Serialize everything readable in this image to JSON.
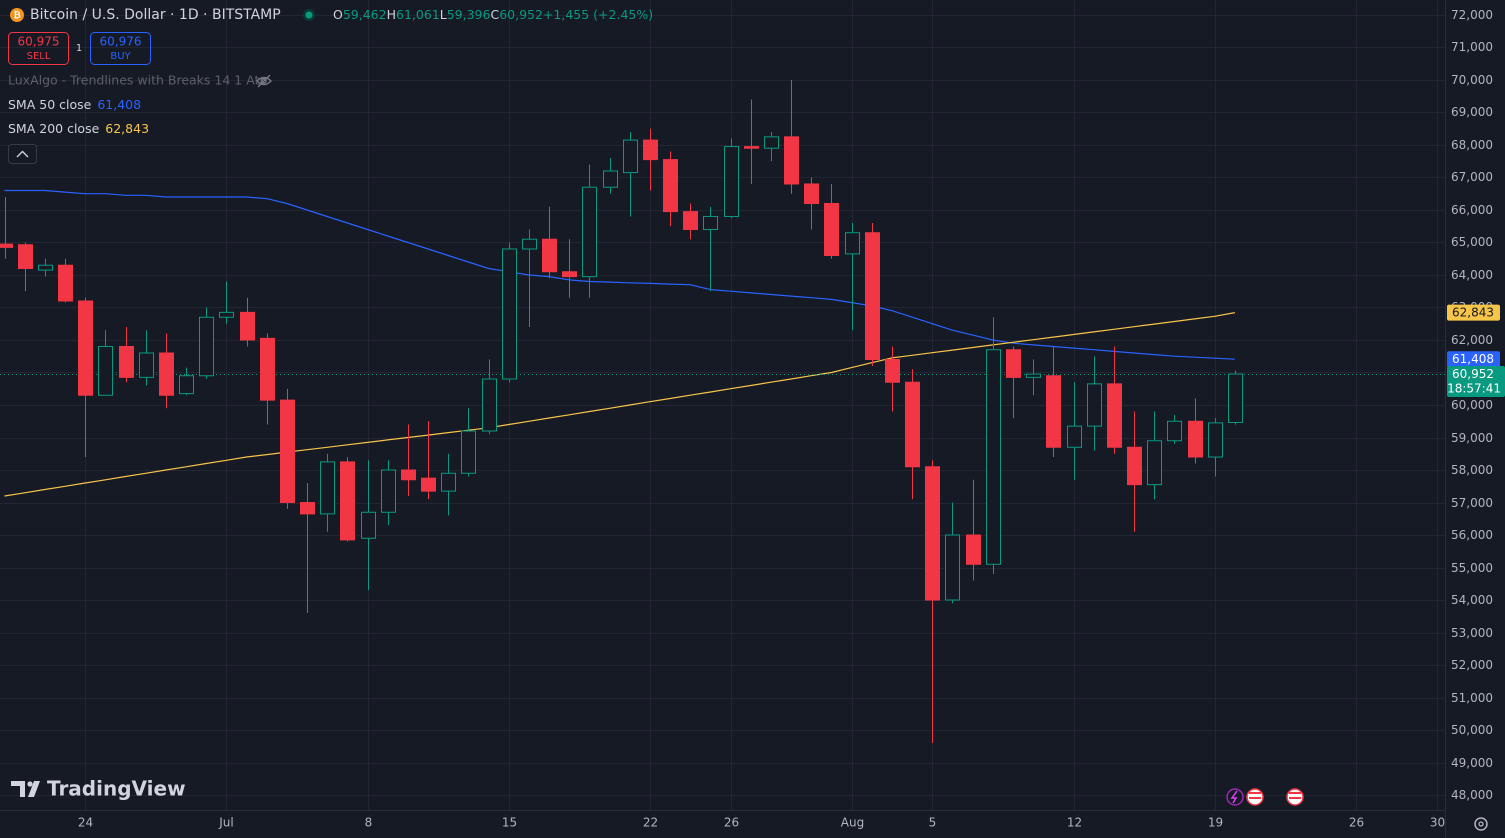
{
  "header": {
    "title": "Bitcoin / U.S. Dollar · 1D · BITSTAMP",
    "ohlc": [
      {
        "key": "O",
        "value": "59,462"
      },
      {
        "key": "H",
        "value": "61,061"
      },
      {
        "key": "L",
        "value": "59,396"
      },
      {
        "key": "C",
        "value": "60,952"
      }
    ],
    "change": "+1,455 (+2.45%)",
    "sell_price": "60,975",
    "sell_label": "SELL",
    "buy_price": "60,976",
    "buy_label": "BUY",
    "quantity": "1",
    "indicator": "LuxAlgo - Trendlines with Breaks 14 1 Atr",
    "watermark": "TradingView"
  },
  "chart_data": {
    "type": "candlestick",
    "x": [
      "Jun 20",
      "Jun 21",
      "Jun 22",
      "Jun 23",
      "Jun 24",
      "Jun 25",
      "Jun 26",
      "Jun 27",
      "Jun 28",
      "Jun 29",
      "Jun 30",
      "Jul 1",
      "Jul 2",
      "Jul 3",
      "Jul 4",
      "Jul 5",
      "Jul 6",
      "Jul 7",
      "Jul 8",
      "Jul 9",
      "Jul 10",
      "Jul 11",
      "Jul 12",
      "Jul 13",
      "Jul 14",
      "Jul 15",
      "Jul 16",
      "Jul 17",
      "Jul 18",
      "Jul 19",
      "Jul 20",
      "Jul 21",
      "Jul 22",
      "Jul 23",
      "Jul 24",
      "Jul 25",
      "Jul 26",
      "Jul 27",
      "Jul 28",
      "Jul 29",
      "Jul 30",
      "Jul 31",
      "Aug 1",
      "Aug 2",
      "Aug 3",
      "Aug 4",
      "Aug 5",
      "Aug 6",
      "Aug 7",
      "Aug 8",
      "Aug 9",
      "Aug 10",
      "Aug 11",
      "Aug 12",
      "Aug 13",
      "Aug 14",
      "Aug 15",
      "Aug 16",
      "Aug 17",
      "Aug 18",
      "Aug 19",
      "Aug 20"
    ],
    "open": [
      64950,
      64930,
      64150,
      64300,
      63200,
      60300,
      61800,
      60850,
      61600,
      60350,
      60900,
      62700,
      62850,
      62050,
      60150,
      57000,
      56650,
      58250,
      55900,
      56700,
      58000,
      57750,
      57350,
      57900,
      59200,
      60800,
      64800,
      65100,
      64100,
      63950,
      66700,
      67150,
      68150,
      67550,
      65950,
      65400,
      65800,
      67950,
      67900,
      68250,
      66800,
      66200,
      64650,
      65300,
      61400,
      60700,
      58100,
      54000,
      56000,
      55100,
      61700,
      60850,
      60900,
      58700,
      59350,
      60650,
      58700,
      57550,
      58900,
      59500,
      58400,
      59462
    ],
    "high": [
      66400,
      65000,
      64500,
      64500,
      63300,
      62300,
      62400,
      62300,
      62200,
      61150,
      63000,
      63800,
      63300,
      62200,
      60500,
      57600,
      58500,
      58400,
      58300,
      58300,
      59400,
      59500,
      58500,
      59900,
      61400,
      65000,
      65400,
      66100,
      65100,
      67400,
      67600,
      68400,
      68500,
      67800,
      66200,
      66100,
      68200,
      69400,
      68400,
      70000,
      67000,
      66800,
      65600,
      65600,
      61800,
      61100,
      58300,
      57000,
      57700,
      62700,
      61800,
      61400,
      61800,
      60700,
      61500,
      61800,
      59800,
      59800,
      59700,
      60200,
      59600,
      61061
    ],
    "low": [
      64500,
      63500,
      63950,
      63150,
      58400,
      60300,
      60700,
      60600,
      59900,
      60300,
      60800,
      62500,
      61800,
      59400,
      56800,
      53600,
      56100,
      55800,
      54300,
      56300,
      57200,
      57100,
      56600,
      57800,
      59100,
      60700,
      62400,
      63900,
      63300,
      63300,
      66500,
      65800,
      66600,
      65500,
      65100,
      63500,
      65750,
      66800,
      67500,
      66500,
      65400,
      64500,
      62300,
      61200,
      59800,
      57100,
      49600,
      53900,
      54600,
      54800,
      59600,
      60300,
      58400,
      57700,
      58600,
      58500,
      56100,
      57100,
      58800,
      58200,
      57800,
      59396
    ],
    "close": [
      64850,
      64200,
      64300,
      63200,
      60300,
      61800,
      60850,
      61600,
      60300,
      60900,
      62700,
      62850,
      62000,
      60150,
      57000,
      56650,
      58250,
      55850,
      56700,
      58000,
      57700,
      57350,
      57900,
      59200,
      60800,
      64800,
      65100,
      64100,
      63950,
      66700,
      67200,
      68150,
      67550,
      65950,
      65400,
      65800,
      67950,
      67900,
      68250,
      66800,
      66200,
      64600,
      65300,
      61400,
      60700,
      58100,
      54000,
      56000,
      55100,
      61700,
      60850,
      60950,
      58700,
      59350,
      60650,
      58700,
      57550,
      58900,
      59500,
      58400,
      59450,
      60952
    ],
    "close_label": "60,952",
    "countdown": "18:57:41",
    "up_color": "#089981",
    "down_color": "#f23645",
    "series": [
      {
        "name": "SMA 50 close",
        "color": "#2962ff",
        "last_label": "61,408",
        "values": [
          66600,
          66600,
          66600,
          66550,
          66500,
          66500,
          66450,
          66450,
          66400,
          66400,
          66400,
          66400,
          66400,
          66350,
          66200,
          66000,
          65800,
          65600,
          65400,
          65200,
          65000,
          64800,
          64600,
          64400,
          64200,
          64100,
          64000,
          63950,
          63850,
          63800,
          63780,
          63760,
          63740,
          63720,
          63700,
          63550,
          63500,
          63450,
          63400,
          63350,
          63300,
          63250,
          63150,
          63050,
          62900,
          62700,
          62500,
          62300,
          62150,
          62000,
          61900,
          61850,
          61800,
          61750,
          61700,
          61650,
          61600,
          61550,
          61500,
          61470,
          61440,
          61408
        ]
      },
      {
        "name": "SMA 200 close",
        "color": "#f7c548",
        "last_label": "62,843",
        "values": [
          57200,
          57300,
          57400,
          57500,
          57600,
          57700,
          57800,
          57900,
          58000,
          58100,
          58200,
          58300,
          58400,
          58475,
          58550,
          58625,
          58700,
          58775,
          58850,
          58925,
          59000,
          59075,
          59150,
          59225,
          59300,
          59400,
          59500,
          59600,
          59700,
          59800,
          59900,
          60000,
          60100,
          60200,
          60300,
          60400,
          60500,
          60600,
          60700,
          60800,
          60900,
          61000,
          61150,
          61300,
          61450,
          61530,
          61610,
          61690,
          61770,
          61850,
          61930,
          62010,
          62090,
          62170,
          62250,
          62330,
          62410,
          62490,
          62570,
          62650,
          62730,
          62843
        ]
      }
    ],
    "ylim": [
      47540,
      72460
    ],
    "yticks": [
      {
        "value": 48000,
        "label": "48,000"
      },
      {
        "value": 49000,
        "label": "49,000"
      },
      {
        "value": 50000,
        "label": "50,000"
      },
      {
        "value": 51000,
        "label": "51,000"
      },
      {
        "value": 52000,
        "label": "52,000"
      },
      {
        "value": 53000,
        "label": "53,000"
      },
      {
        "value": 54000,
        "label": "54,000"
      },
      {
        "value": 55000,
        "label": "55,000"
      },
      {
        "value": 56000,
        "label": "56,000"
      },
      {
        "value": 57000,
        "label": "57,000"
      },
      {
        "value": 58000,
        "label": "58,000"
      },
      {
        "value": 59000,
        "label": "59,000"
      },
      {
        "value": 60000,
        "label": "60,000"
      },
      {
        "value": 61000,
        "label": "61,000"
      },
      {
        "value": 62000,
        "label": "62,000"
      },
      {
        "value": 63000,
        "label": "63,000"
      },
      {
        "value": 64000,
        "label": "64,000"
      },
      {
        "value": 65000,
        "label": "65,000"
      },
      {
        "value": 66000,
        "label": "66,000"
      },
      {
        "value": 67000,
        "label": "67,000"
      },
      {
        "value": 68000,
        "label": "68,000"
      },
      {
        "value": 69000,
        "label": "69,000"
      },
      {
        "value": 70000,
        "label": "70,000"
      },
      {
        "value": 71000,
        "label": "71,000"
      },
      {
        "value": 72000,
        "label": "72,000"
      }
    ],
    "xticks": [
      {
        "value": "Jun 24",
        "label": "24"
      },
      {
        "value": "Jul 1",
        "label": "Jul"
      },
      {
        "value": "Jul 8",
        "label": "8"
      },
      {
        "value": "Jul 15",
        "label": "15"
      },
      {
        "value": "Jul 22",
        "label": "22"
      },
      {
        "value": "Jul 26",
        "label": "26"
      },
      {
        "value": "Aug 1",
        "label": "Aug"
      },
      {
        "value": "Aug 5",
        "label": "5"
      },
      {
        "value": "Aug 12",
        "label": "12"
      },
      {
        "value": "Aug 19",
        "label": "19"
      },
      {
        "value": "Aug 26",
        "label": "26"
      },
      {
        "value": "Aug 30",
        "label": "30"
      }
    ],
    "grid": true
  }
}
